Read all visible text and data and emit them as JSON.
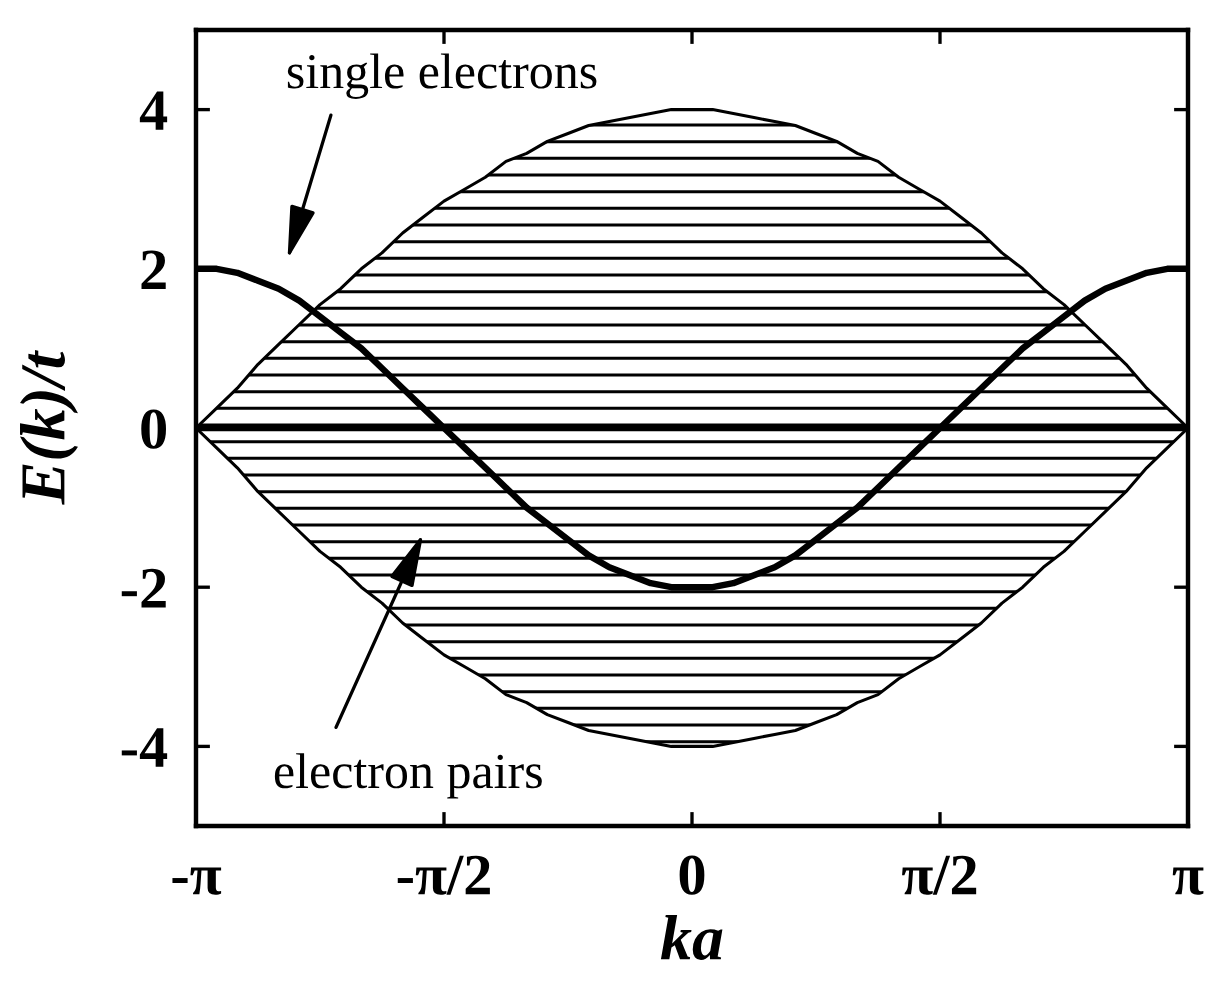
{
  "chart_data": {
    "type": "line",
    "xlabel": "ka",
    "ylabel": "E(k)/t",
    "legend": "left",
    "x": [
      -3.1416,
      -3.0107,
      -2.8798,
      -2.7489,
      -2.618,
      -2.4871,
      -2.3562,
      -2.2253,
      -2.0944,
      -1.9635,
      -1.8326,
      -1.7017,
      -1.5708,
      -1.4399,
      -1.309,
      -1.1781,
      -1.0472,
      -0.9163,
      -0.7854,
      -0.6545,
      -0.5236,
      -0.3927,
      -0.2618,
      -0.1309,
      0,
      0.1309,
      0.2618,
      0.3927,
      0.5236,
      0.6545,
      0.7854,
      0.9163,
      1.0472,
      1.1781,
      1.309,
      1.4399,
      1.5708,
      1.7017,
      1.8326,
      1.9635,
      2.0944,
      2.2253,
      2.3562,
      2.4871,
      2.618,
      2.7489,
      2.8798,
      3.0107,
      3.1416
    ],
    "xlim": [
      -3.1416,
      3.1416
    ],
    "xticks": [
      {
        "value": -3.1416,
        "label": "-π"
      },
      {
        "value": -1.5708,
        "label": "-π/2"
      },
      0,
      {
        "value": 1.5708,
        "label": "π/2"
      },
      {
        "value": 3.1416,
        "label": "π"
      }
    ],
    "ylim": [
      -5,
      5
    ],
    "yticks": [
      -4,
      -2,
      0,
      2,
      4
    ],
    "series": [
      {
        "name": "electron pairs",
        "color": "#000000",
        "values": [
          0,
          0,
          0,
          0,
          0,
          0,
          0,
          0,
          0,
          0,
          0,
          0,
          0,
          0,
          0,
          0,
          0,
          0,
          0,
          0,
          0,
          0,
          0,
          0,
          0,
          0,
          0,
          0,
          0,
          0,
          0,
          0,
          0,
          0,
          0,
          0,
          0,
          0,
          0,
          0,
          0,
          0,
          0,
          0,
          0,
          0,
          0,
          0,
          0
        ],
        "lower": [
          0,
          -0.25,
          -0.5,
          -0.8,
          -1.05,
          -1.3,
          -1.55,
          -1.75,
          -2,
          -2.2,
          -2.45,
          -2.65,
          -2.85,
          -3,
          -3.15,
          -3.35,
          -3.45,
          -3.6,
          -3.7,
          -3.8,
          -3.85,
          -3.9,
          -3.95,
          -4,
          -4,
          -4,
          -3.95,
          -3.9,
          -3.85,
          -3.8,
          -3.7,
          -3.6,
          -3.45,
          -3.35,
          -3.15,
          -3,
          -2.85,
          -2.65,
          -2.45,
          -2.2,
          -2,
          -1.75,
          -1.55,
          -1.3,
          -1.05,
          -0.8,
          -0.5,
          -0.25,
          0
        ],
        "upper": [
          0,
          0.25,
          0.5,
          0.8,
          1.05,
          1.3,
          1.55,
          1.75,
          2,
          2.2,
          2.45,
          2.65,
          2.85,
          3,
          3.15,
          3.35,
          3.45,
          3.6,
          3.7,
          3.8,
          3.85,
          3.9,
          3.95,
          4,
          4,
          4,
          3.95,
          3.9,
          3.85,
          3.8,
          3.7,
          3.6,
          3.45,
          3.35,
          3.15,
          3,
          2.85,
          2.65,
          2.45,
          2.2,
          2,
          1.75,
          1.55,
          1.3,
          1.05,
          0.8,
          0.5,
          0.25,
          0
        ]
      },
      {
        "name": "single electrons",
        "color": "#000000",
        "values": [
          2,
          2,
          1.95,
          1.85,
          1.75,
          1.6,
          1.4,
          1.2,
          1,
          0.75,
          0.5,
          0.25,
          0,
          -0.25,
          -0.5,
          -0.75,
          -1,
          -1.2,
          -1.4,
          -1.6,
          -1.75,
          -1.85,
          -1.95,
          -2,
          -2,
          -2,
          -1.95,
          -1.85,
          -1.75,
          -1.6,
          -1.4,
          -1.2,
          -1,
          -0.75,
          -0.5,
          -0.25,
          0,
          0.25,
          0.5,
          0.75,
          1,
          1.2,
          1.4,
          1.6,
          1.75,
          1.85,
          1.95,
          2,
          2
        ]
      }
    ]
  }
}
